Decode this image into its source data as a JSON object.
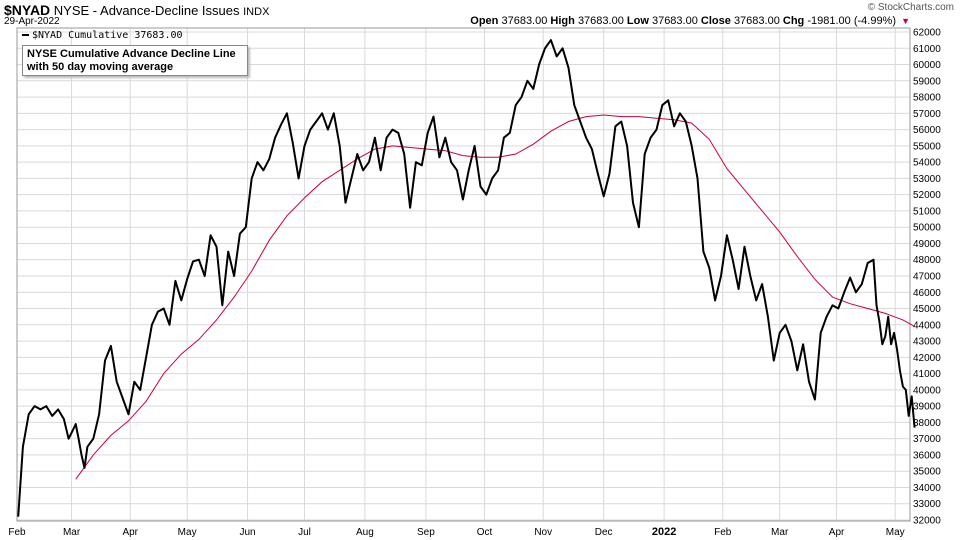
{
  "header": {
    "symbol": "$NYAD",
    "name": "NYSE - Advance-Decline Issues",
    "exchange": "INDX",
    "date": "29-Apr-2022",
    "logo": "© StockCharts.com",
    "open_label": "Open",
    "open": "37683.00",
    "high_label": "High",
    "high": "37683.00",
    "low_label": "Low",
    "low": "37683.00",
    "close_label": "Close",
    "close": "37683.00",
    "chg_label": "Chg",
    "chg": "-1981.00 (-4.99%)",
    "chg_arrow": "▼"
  },
  "legend": {
    "series_label": "$NYAD Cumulative 37683.00",
    "note_line1": "NYSE Cumulative Advance Decline Line",
    "note_line2": "with 50 day moving average"
  },
  "colors": {
    "price": "#000000",
    "ma": "#cc0033",
    "grid": "#d9d9d9"
  },
  "chart_data": {
    "type": "line",
    "title": "NYSE Cumulative Advance Decline Line",
    "ylim": [
      32000,
      62000
    ],
    "y_ticks": [
      32000,
      33000,
      34000,
      35000,
      36000,
      37000,
      38000,
      39000,
      40000,
      41000,
      42000,
      43000,
      44000,
      45000,
      46000,
      47000,
      48000,
      49000,
      50000,
      51000,
      52000,
      53000,
      54000,
      55000,
      56000,
      57000,
      58000,
      59000,
      60000,
      61000,
      62000
    ],
    "x_range": [
      0,
      15
    ],
    "x_ticks": [
      {
        "label": "Feb",
        "x": 0
      },
      {
        "label": "Mar",
        "x": 0.93
      },
      {
        "label": "Apr",
        "x": 1.93
      },
      {
        "label": "May",
        "x": 2.9
      },
      {
        "label": "Jun",
        "x": 3.93
      },
      {
        "label": "Jul",
        "x": 4.9
      },
      {
        "label": "Aug",
        "x": 5.93
      },
      {
        "label": "Sep",
        "x": 6.97
      },
      {
        "label": "Oct",
        "x": 7.97
      },
      {
        "label": "Nov",
        "x": 8.97
      },
      {
        "label": "Dec",
        "x": 10.0
      },
      {
        "label": "2022",
        "x": 11.03,
        "bold": true
      },
      {
        "label": "Feb",
        "x": 12.03
      },
      {
        "label": "Mar",
        "x": 13.0
      },
      {
        "label": "Apr",
        "x": 13.97
      },
      {
        "label": "May",
        "x": 14.97
      }
    ],
    "series": [
      {
        "name": "$NYAD Cumulative",
        "points": [
          [
            0.02,
            32200
          ],
          [
            0.1,
            36500
          ],
          [
            0.2,
            38500
          ],
          [
            0.3,
            39000
          ],
          [
            0.4,
            38800
          ],
          [
            0.5,
            39000
          ],
          [
            0.6,
            38400
          ],
          [
            0.7,
            38800
          ],
          [
            0.8,
            38200
          ],
          [
            0.88,
            37000
          ],
          [
            0.95,
            37500
          ],
          [
            1.0,
            37900
          ],
          [
            1.05,
            37000
          ],
          [
            1.1,
            36000
          ],
          [
            1.15,
            35200
          ],
          [
            1.2,
            36500
          ],
          [
            1.3,
            37000
          ],
          [
            1.4,
            38500
          ],
          [
            1.5,
            41800
          ],
          [
            1.6,
            42700
          ],
          [
            1.7,
            40500
          ],
          [
            1.8,
            39500
          ],
          [
            1.9,
            38500
          ],
          [
            2.0,
            40500
          ],
          [
            2.1,
            40000
          ],
          [
            2.2,
            42000
          ],
          [
            2.3,
            44000
          ],
          [
            2.4,
            44800
          ],
          [
            2.5,
            45000
          ],
          [
            2.6,
            44000
          ],
          [
            2.7,
            46700
          ],
          [
            2.8,
            45500
          ],
          [
            2.9,
            46800
          ],
          [
            3.0,
            47900
          ],
          [
            3.1,
            48000
          ],
          [
            3.2,
            47000
          ],
          [
            3.3,
            49500
          ],
          [
            3.4,
            48800
          ],
          [
            3.5,
            45200
          ],
          [
            3.6,
            48500
          ],
          [
            3.7,
            47000
          ],
          [
            3.8,
            49600
          ],
          [
            3.9,
            50000
          ],
          [
            4.0,
            53000
          ],
          [
            4.1,
            54000
          ],
          [
            4.2,
            53500
          ],
          [
            4.3,
            54200
          ],
          [
            4.4,
            55500
          ],
          [
            4.5,
            56300
          ],
          [
            4.6,
            57000
          ],
          [
            4.7,
            55200
          ],
          [
            4.8,
            53000
          ],
          [
            4.9,
            55000
          ],
          [
            5.0,
            56000
          ],
          [
            5.1,
            56500
          ],
          [
            5.2,
            57000
          ],
          [
            5.3,
            56000
          ],
          [
            5.4,
            57000
          ],
          [
            5.5,
            55000
          ],
          [
            5.6,
            51500
          ],
          [
            5.7,
            53000
          ],
          [
            5.8,
            54500
          ],
          [
            5.9,
            53500
          ],
          [
            6.0,
            54000
          ],
          [
            6.1,
            55500
          ],
          [
            6.2,
            53500
          ],
          [
            6.3,
            55500
          ],
          [
            6.4,
            56000
          ],
          [
            6.5,
            55800
          ],
          [
            6.6,
            54500
          ],
          [
            6.7,
            51200
          ],
          [
            6.8,
            54000
          ],
          [
            6.9,
            53800
          ],
          [
            7.0,
            55800
          ],
          [
            7.1,
            56800
          ],
          [
            7.2,
            54300
          ],
          [
            7.3,
            55500
          ],
          [
            7.4,
            54000
          ],
          [
            7.5,
            53500
          ],
          [
            7.6,
            51700
          ],
          [
            7.7,
            53500
          ],
          [
            7.8,
            55000
          ],
          [
            7.9,
            52500
          ],
          [
            8.0,
            52000
          ],
          [
            8.1,
            53000
          ],
          [
            8.2,
            53500
          ],
          [
            8.3,
            55500
          ],
          [
            8.4,
            55800
          ],
          [
            8.5,
            57500
          ],
          [
            8.6,
            58000
          ],
          [
            8.7,
            59000
          ],
          [
            8.8,
            58500
          ],
          [
            8.9,
            60000
          ],
          [
            9.0,
            61000
          ],
          [
            9.1,
            61500
          ],
          [
            9.2,
            60500
          ],
          [
            9.3,
            61000
          ],
          [
            9.4,
            59800
          ],
          [
            9.5,
            57500
          ],
          [
            9.6,
            56500
          ],
          [
            9.7,
            55500
          ],
          [
            9.8,
            54800
          ],
          [
            9.9,
            53300
          ],
          [
            10.0,
            51900
          ],
          [
            10.1,
            53300
          ],
          [
            10.2,
            56200
          ],
          [
            10.3,
            56500
          ],
          [
            10.4,
            55000
          ],
          [
            10.5,
            51500
          ],
          [
            10.6,
            50000
          ],
          [
            10.7,
            54500
          ],
          [
            10.8,
            55500
          ],
          [
            10.9,
            56000
          ],
          [
            11.0,
            57500
          ],
          [
            11.1,
            57800
          ],
          [
            11.2,
            56200
          ],
          [
            11.3,
            57000
          ],
          [
            11.4,
            56500
          ],
          [
            11.5,
            55000
          ],
          [
            11.6,
            53000
          ],
          [
            11.7,
            48500
          ],
          [
            11.8,
            47500
          ],
          [
            11.9,
            45500
          ],
          [
            12.0,
            47000
          ],
          [
            12.1,
            49500
          ],
          [
            12.2,
            48000
          ],
          [
            12.3,
            46200
          ],
          [
            12.4,
            48800
          ],
          [
            12.5,
            47000
          ],
          [
            12.6,
            45500
          ],
          [
            12.7,
            46500
          ],
          [
            12.8,
            44500
          ],
          [
            12.9,
            41800
          ],
          [
            13.0,
            43500
          ],
          [
            13.1,
            44000
          ],
          [
            13.2,
            43000
          ],
          [
            13.3,
            41200
          ],
          [
            13.4,
            42800
          ],
          [
            13.5,
            40500
          ],
          [
            13.6,
            39400
          ],
          [
            13.7,
            43500
          ],
          [
            13.8,
            44500
          ],
          [
            13.9,
            45200
          ],
          [
            14.0,
            45000
          ],
          [
            14.1,
            46000
          ],
          [
            14.2,
            46900
          ],
          [
            14.3,
            46000
          ],
          [
            14.4,
            46500
          ],
          [
            14.5,
            47800
          ],
          [
            14.6,
            48000
          ],
          [
            14.65,
            45200
          ],
          [
            14.7,
            44200
          ],
          [
            14.75,
            42800
          ],
          [
            14.8,
            43300
          ],
          [
            14.85,
            44500
          ],
          [
            14.9,
            42800
          ],
          [
            14.95,
            43500
          ],
          [
            15.0,
            42500
          ],
          [
            15.05,
            41200
          ],
          [
            15.1,
            40200
          ],
          [
            15.15,
            40000
          ],
          [
            15.2,
            38400
          ],
          [
            15.25,
            39600
          ],
          [
            15.3,
            37683
          ]
        ]
      },
      {
        "name": "50 day moving average",
        "points": [
          [
            1.0,
            34500
          ],
          [
            1.3,
            36000
          ],
          [
            1.6,
            37200
          ],
          [
            1.9,
            38100
          ],
          [
            2.2,
            39300
          ],
          [
            2.5,
            41000
          ],
          [
            2.8,
            42200
          ],
          [
            3.1,
            43100
          ],
          [
            3.4,
            44300
          ],
          [
            3.7,
            45700
          ],
          [
            4.0,
            47300
          ],
          [
            4.3,
            49200
          ],
          [
            4.6,
            50700
          ],
          [
            4.9,
            51800
          ],
          [
            5.2,
            52800
          ],
          [
            5.5,
            53500
          ],
          [
            5.8,
            54200
          ],
          [
            6.1,
            54800
          ],
          [
            6.4,
            55000
          ],
          [
            6.7,
            54900
          ],
          [
            7.0,
            54800
          ],
          [
            7.3,
            54700
          ],
          [
            7.6,
            54400
          ],
          [
            7.9,
            54300
          ],
          [
            8.2,
            54300
          ],
          [
            8.5,
            54500
          ],
          [
            8.8,
            55100
          ],
          [
            9.1,
            55900
          ],
          [
            9.4,
            56500
          ],
          [
            9.7,
            56800
          ],
          [
            10.0,
            56900
          ],
          [
            10.3,
            56800
          ],
          [
            10.6,
            56800
          ],
          [
            10.9,
            56700
          ],
          [
            11.2,
            56600
          ],
          [
            11.5,
            56400
          ],
          [
            11.8,
            55400
          ],
          [
            12.1,
            53600
          ],
          [
            12.4,
            52300
          ],
          [
            12.7,
            51000
          ],
          [
            13.0,
            49700
          ],
          [
            13.3,
            48200
          ],
          [
            13.6,
            46800
          ],
          [
            13.9,
            45700
          ],
          [
            14.2,
            45300
          ],
          [
            14.5,
            45000
          ],
          [
            14.8,
            44700
          ],
          [
            15.1,
            44300
          ],
          [
            15.3,
            43900
          ]
        ]
      }
    ]
  }
}
